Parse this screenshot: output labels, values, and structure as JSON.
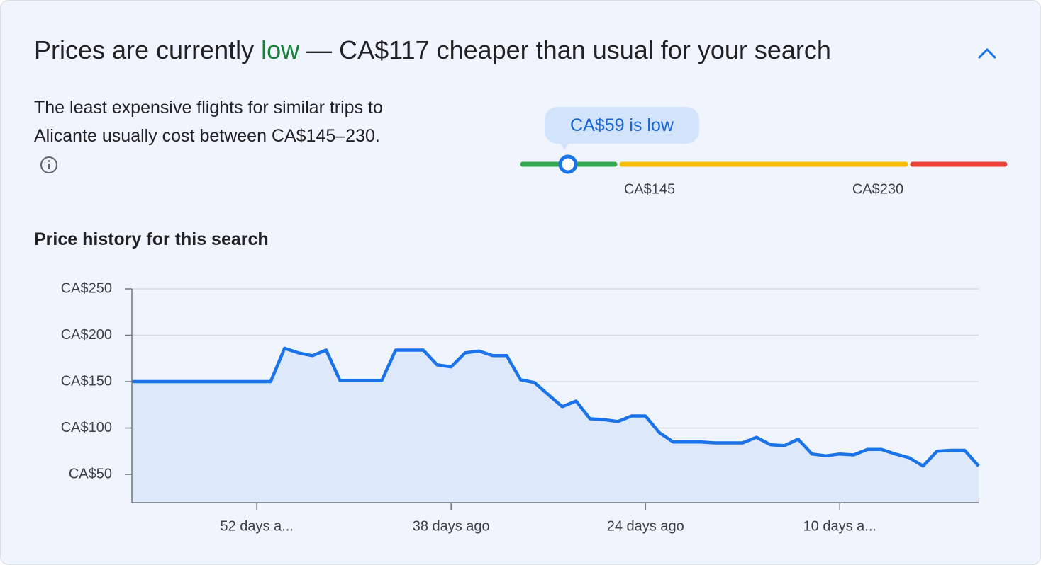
{
  "header": {
    "title_before": "Prices are currently ",
    "title_highlight": "low",
    "title_after": " — CA$117 cheaper than usual for your search"
  },
  "description": "The least expensive flights for similar trips to Alicante usually cost between CA$145–230.",
  "price_meter": {
    "tooltip": "CA$59 is low",
    "low_label": "CA$145",
    "high_label": "CA$230"
  },
  "chart_data": {
    "type": "line",
    "title": "Price history for this search",
    "x": [
      61,
      60,
      59,
      58,
      57,
      56,
      55,
      54,
      53,
      52,
      51,
      50,
      49,
      48,
      47,
      46,
      45,
      44,
      43,
      42,
      41,
      40,
      39,
      38,
      37,
      36,
      35,
      34,
      33,
      32,
      31,
      30,
      29,
      28,
      27,
      26,
      25,
      24,
      23,
      22,
      21,
      20,
      19,
      18,
      17,
      16,
      15,
      14,
      13,
      12,
      11,
      10,
      9,
      8,
      7,
      6,
      5,
      4,
      3,
      2,
      1,
      0
    ],
    "values": [
      150,
      150,
      150,
      150,
      150,
      150,
      150,
      150,
      150,
      150,
      150,
      186,
      181,
      178,
      184,
      151,
      151,
      151,
      151,
      184,
      184,
      184,
      168,
      166,
      181,
      183,
      178,
      178,
      152,
      149,
      136,
      123,
      129,
      110,
      109,
      107,
      113,
      113,
      95,
      85,
      85,
      85,
      84,
      84,
      84,
      90,
      82,
      81,
      88,
      72,
      70,
      72,
      71,
      77,
      77,
      72,
      68,
      59,
      75,
      76,
      76,
      59
    ],
    "color": "#1a73e8",
    "fill_color": "#dde8fa",
    "xlim": [
      61,
      0
    ],
    "xticks": [
      {
        "value": 52,
        "label": "52 days a..."
      },
      {
        "value": 38,
        "label": "38 days ago"
      },
      {
        "value": 24,
        "label": "24 days ago"
      },
      {
        "value": 10,
        "label": "10 days a..."
      }
    ],
    "ylim": [
      19.5,
      250
    ],
    "yticks": [
      {
        "value": 50,
        "label": "CA$50"
      },
      {
        "value": 100,
        "label": "CA$100"
      },
      {
        "value": 150,
        "label": "CA$150"
      },
      {
        "value": 200,
        "label": "CA$200"
      },
      {
        "value": 250,
        "label": "CA$250"
      }
    ],
    "grid": true
  }
}
